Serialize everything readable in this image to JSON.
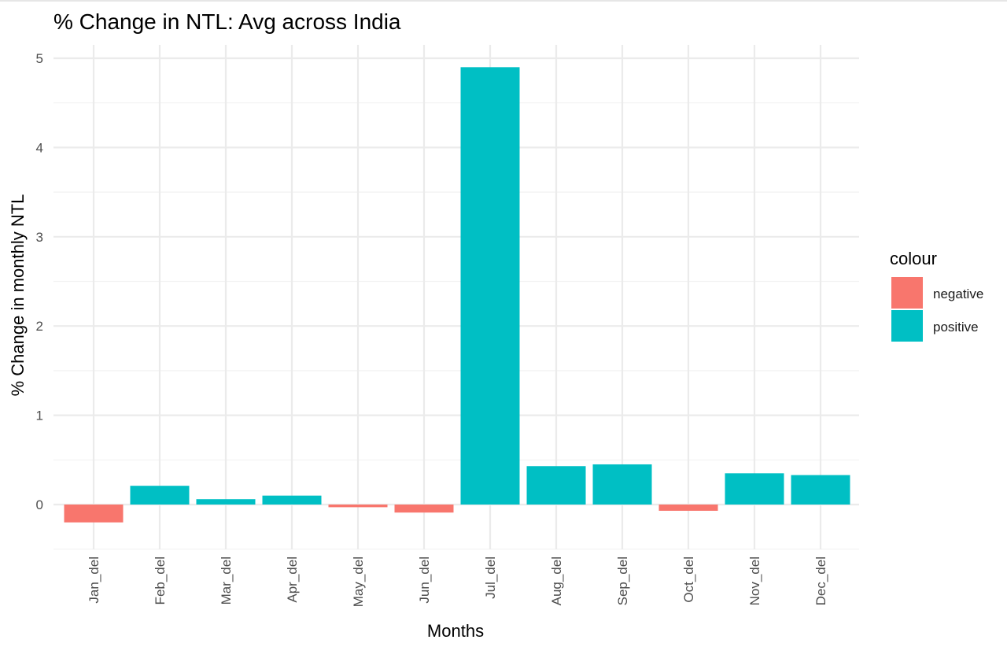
{
  "chart_data": {
    "type": "bar",
    "title": "% Change in NTL: Avg across India",
    "xlabel": "Months",
    "ylabel": "% Change in monthly NTL",
    "categories": [
      "Jan_del",
      "Feb_del",
      "Mar_del",
      "Apr_del",
      "May_del",
      "Jun_del",
      "Jul_del",
      "Aug_del",
      "Sep_del",
      "Oct_del",
      "Nov_del",
      "Dec_del"
    ],
    "values": [
      -0.2,
      0.21,
      0.06,
      0.1,
      -0.03,
      -0.09,
      4.9,
      0.43,
      0.45,
      -0.07,
      0.35,
      0.33
    ],
    "ylim": [
      -0.45,
      5.1
    ],
    "yticks": [
      0,
      1,
      2,
      3,
      4,
      5
    ],
    "grid": true,
    "legend": {
      "title": "colour",
      "position": "right",
      "entries": [
        {
          "label": "negative",
          "color": "#F8766D"
        },
        {
          "label": "positive",
          "color": "#00BFC4"
        }
      ]
    }
  }
}
